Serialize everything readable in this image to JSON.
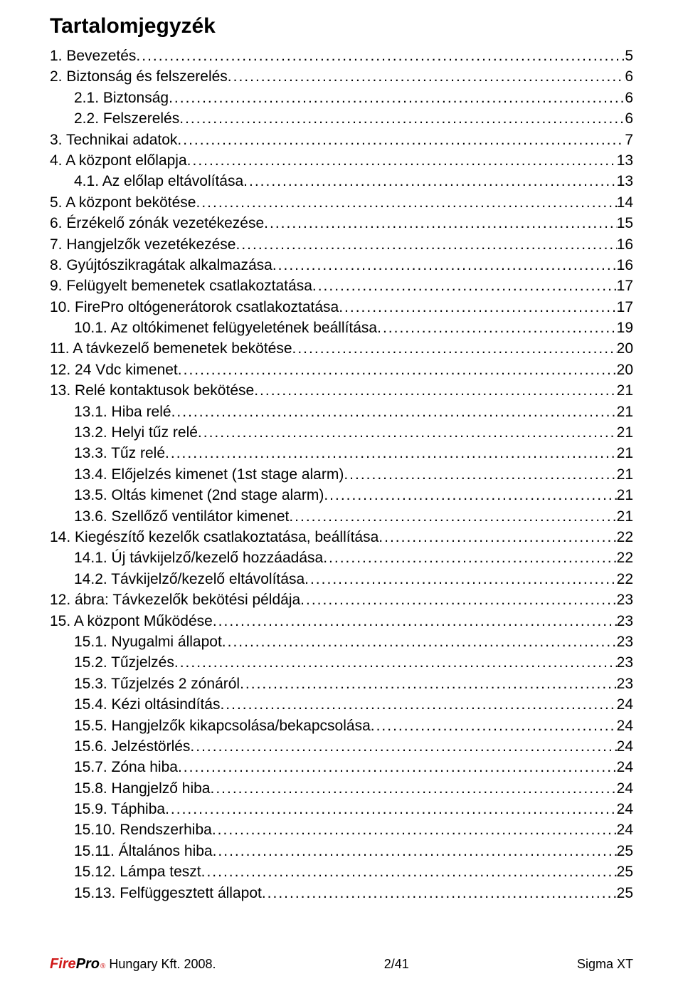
{
  "title": "Tartalomjegyzék",
  "toc": [
    {
      "level": 0,
      "text": "1. Bevezetés",
      "page": "5"
    },
    {
      "level": 0,
      "text": "2. Biztonság és felszerelés",
      "page": "6"
    },
    {
      "level": 1,
      "text": "2.1. Biztonság",
      "page": "6"
    },
    {
      "level": 1,
      "text": "2.2. Felszerelés",
      "page": "6"
    },
    {
      "level": 0,
      "text": "3. Technikai adatok",
      "page": "7"
    },
    {
      "level": 0,
      "text": "4. A központ előlapja",
      "page": "13"
    },
    {
      "level": 1,
      "text": "4.1. Az előlap eltávolítása",
      "page": "13"
    },
    {
      "level": 0,
      "text": "5. A központ bekötése",
      "page": "14"
    },
    {
      "level": 0,
      "text": "6. Érzékelő zónák vezetékezése",
      "page": "15"
    },
    {
      "level": 0,
      "text": "7. Hangjelzők vezetékezése",
      "page": "16"
    },
    {
      "level": 0,
      "text": "8. Gyújtószikragátak alkalmazása",
      "page": "16"
    },
    {
      "level": 0,
      "text": "9. Felügyelt bemenetek csatlakoztatása",
      "page": "17"
    },
    {
      "level": 0,
      "text": "10. FirePro oltógenerátorok csatlakoztatása",
      "page": "17"
    },
    {
      "level": 1,
      "text": "10.1. Az oltókimenet felügyeletének beállítása",
      "page": "19"
    },
    {
      "level": 0,
      "text": "11. A távkezelő bemenetek bekötése",
      "page": "20"
    },
    {
      "level": 0,
      "text": "12. 24 Vdc kimenet",
      "page": "20"
    },
    {
      "level": 0,
      "text": "13. Relé kontaktusok bekötése",
      "page": "21"
    },
    {
      "level": 1,
      "text": "13.1. Hiba relé",
      "page": "21"
    },
    {
      "level": 1,
      "text": "13.2. Helyi tűz relé",
      "page": "21"
    },
    {
      "level": 1,
      "text": "13.3. Tűz relé",
      "page": "21"
    },
    {
      "level": 1,
      "text": "13.4. Előjelzés kimenet (1st stage alarm)",
      "page": "21"
    },
    {
      "level": 1,
      "text": "13.5. Oltás kimenet (2nd stage alarm)",
      "page": "21"
    },
    {
      "level": 1,
      "text": "13.6. Szellőző ventilátor kimenet",
      "page": "21"
    },
    {
      "level": 0,
      "text": "14. Kiegészítő kezelők csatlakoztatása, beállítása",
      "page": "22"
    },
    {
      "level": 1,
      "text": "14.1. Új távkijelző/kezelő hozzáadása",
      "page": "22"
    },
    {
      "level": 1,
      "text": "14.2. Távkijelző/kezelő eltávolítása",
      "page": "22"
    },
    {
      "level": 0,
      "text": "12. ábra: Távkezelők bekötési példája",
      "page": "23"
    },
    {
      "level": 0,
      "text": "15. A központ Működése",
      "page": "23"
    },
    {
      "level": 1,
      "text": "15.1. Nyugalmi állapot",
      "page": "23"
    },
    {
      "level": 1,
      "text": "15.2. Tűzjelzés",
      "page": "23"
    },
    {
      "level": 1,
      "text": "15.3. Tűzjelzés 2 zónáról",
      "page": "23"
    },
    {
      "level": 1,
      "text": "15.4. Kézi oltásindítás",
      "page": "24"
    },
    {
      "level": 1,
      "text": "15.5. Hangjelzők kikapcsolása/bekapcsolása",
      "page": "24"
    },
    {
      "level": 1,
      "text": "15.6. Jelzéstörlés",
      "page": "24"
    },
    {
      "level": 1,
      "text": "15.7. Zóna hiba",
      "page": "24"
    },
    {
      "level": 1,
      "text": "15.8. Hangjelző hiba",
      "page": "24"
    },
    {
      "level": 1,
      "text": "15.9. Táphiba",
      "page": "24"
    },
    {
      "level": 1,
      "text": "15.10. Rendszerhiba",
      "page": "24"
    },
    {
      "level": 1,
      "text": "15.11. Általános hiba",
      "page": "25"
    },
    {
      "level": 1,
      "text": "15.12. Lámpa teszt",
      "page": "25"
    },
    {
      "level": 1,
      "text": "15.13. Felfüggesztett állapot",
      "page": "25"
    }
  ],
  "footer": {
    "logo_fire": "Fire",
    "logo_pro": "Pro",
    "left": " Hungary Kft. 2008.",
    "center": "2/41",
    "right": "Sigma XT"
  }
}
